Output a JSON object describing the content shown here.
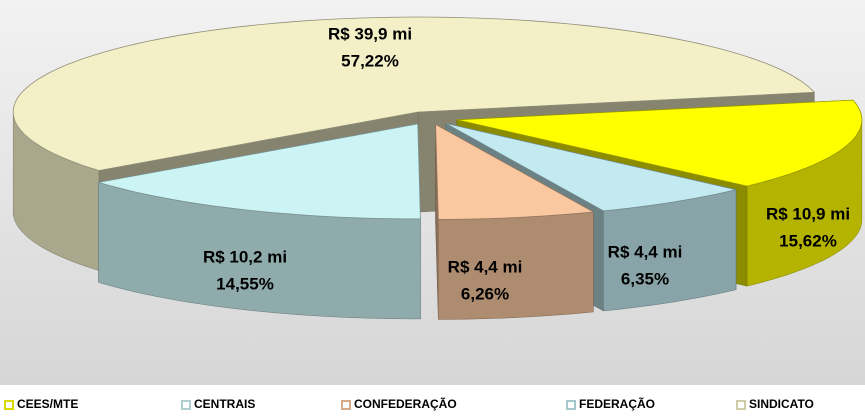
{
  "chart_data": {
    "type": "pie3d",
    "categories": [
      "CEES/MTE",
      "CENTRAIS",
      "CONFEDERAÇÃO",
      "FEDERAÇÃO",
      "SINDICATO"
    ],
    "values": [
      15.62,
      14.55,
      6.26,
      6.35,
      57.22
    ],
    "value_labels": [
      "15,62%",
      "14,55%",
      "6,26%",
      "6,35%",
      "57,22%"
    ],
    "amounts": [
      10.9,
      10.2,
      4.4,
      4.4,
      39.9
    ],
    "amount_labels": [
      "R$ 10,9 mi",
      "R$ 10,2 mi",
      "R$ 4,4 mi",
      "R$ 4,4 mi",
      "R$ 39,9 mi"
    ],
    "colors": [
      "#ffff00",
      "#ccf4f4",
      "#f9c8a0",
      "#c2eaf0",
      "#f3f0c8"
    ],
    "legend": "bottom"
  }
}
